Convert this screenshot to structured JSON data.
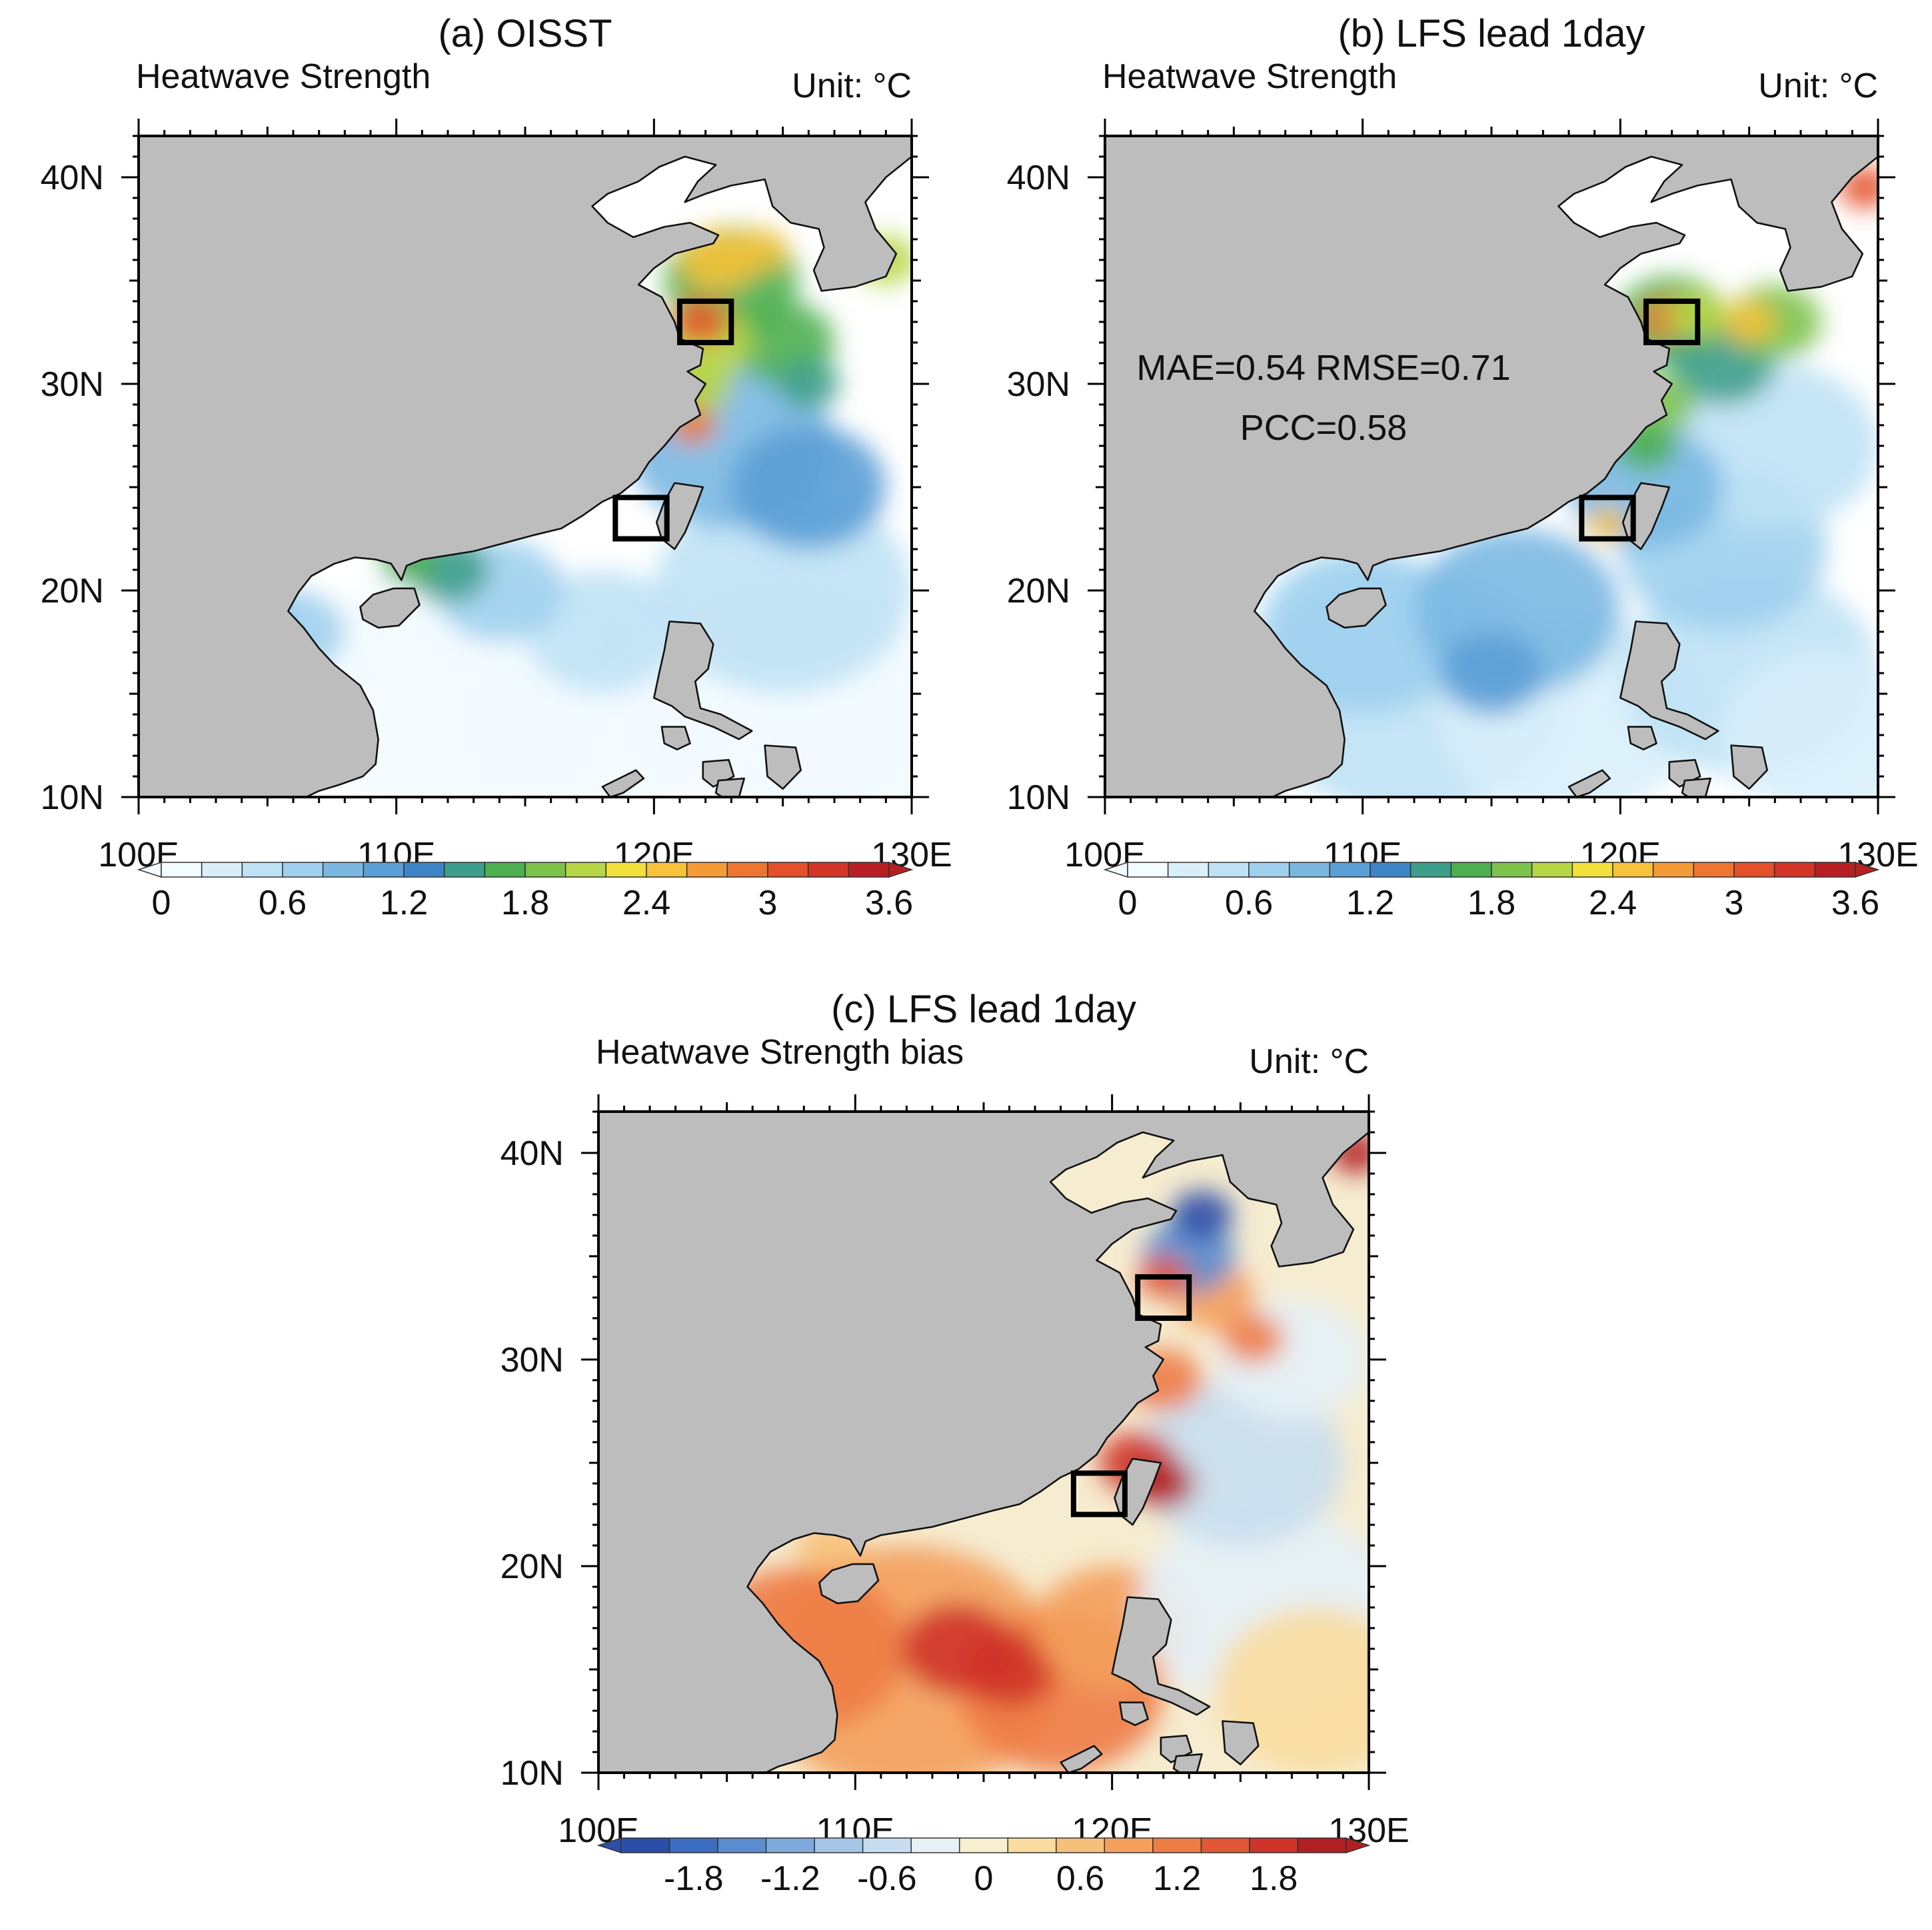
{
  "figure": {
    "panels": [
      {
        "id": "a",
        "title": "(a) OISST",
        "subtitle": "Heatwave Strength",
        "unit_label": "Unit: °C",
        "kind": "strength",
        "stats": null,
        "boxes": [
          {
            "lon": [
              121,
              123
            ],
            "lat": [
              32,
              34
            ]
          },
          {
            "lon": [
              118.5,
              120.5
            ],
            "lat": [
              22.5,
              24.5
            ]
          }
        ]
      },
      {
        "id": "b",
        "title": "(b) LFS lead 1day",
        "subtitle": "Heatwave Strength",
        "unit_label": "Unit: °C",
        "kind": "strength",
        "stats": {
          "line1": "MAE=0.54  RMSE=0.71",
          "line2": "PCC=0.58"
        },
        "boxes": [
          {
            "lon": [
              121,
              123
            ],
            "lat": [
              32,
              34
            ]
          },
          {
            "lon": [
              118.5,
              120.5
            ],
            "lat": [
              22.5,
              24.5
            ]
          }
        ]
      },
      {
        "id": "c",
        "title": "(c) LFS lead 1day",
        "subtitle": "Heatwave Strength bias",
        "unit_label": "Unit: °C",
        "kind": "bias",
        "stats": null,
        "boxes": [
          {
            "lon": [
              121,
              123
            ],
            "lat": [
              32,
              34
            ]
          },
          {
            "lon": [
              118.5,
              120.5
            ],
            "lat": [
              22.5,
              24.5
            ]
          }
        ]
      }
    ],
    "axes": {
      "lon_range": [
        100,
        130
      ],
      "lat_range": [
        10,
        42
      ],
      "lon_ticks": [
        "100E",
        "110E",
        "120E",
        "130E"
      ],
      "lat_ticks": [
        "10N",
        "20N",
        "30N",
        "40N"
      ]
    },
    "colorbars": {
      "strength": {
        "labels": [
          "0",
          "0.6",
          "1.2",
          "1.8",
          "2.4",
          "3",
          "3.6"
        ],
        "colors": [
          "#f2fbff",
          "#d9f0fb",
          "#bfe2f5",
          "#9fd0ee",
          "#7ab8e2",
          "#5a9fd6",
          "#3d84c6",
          "#3d9e8a",
          "#4caf50",
          "#7cc24a",
          "#b7d645",
          "#f2e03b",
          "#f7c13a",
          "#f49a36",
          "#ee7530",
          "#e4502a",
          "#d33426",
          "#b81f22"
        ]
      },
      "bias": {
        "labels": [
          "-1.8",
          "-1.2",
          "-0.6",
          "0",
          "0.6",
          "1.2",
          "1.8"
        ],
        "colors": [
          "#2b4ea8",
          "#3b6cc0",
          "#5a8ccf",
          "#7eaadb",
          "#a5c6e6",
          "#c8def0",
          "#e6f1f7",
          "#f7efcf",
          "#f9dc9e",
          "#f7c07a",
          "#f4a05c",
          "#ee7c45",
          "#e25736",
          "#cf3329",
          "#b11f22"
        ]
      }
    },
    "chart_data": {
      "type": "heatmap",
      "variable": "Heatwave Strength",
      "unit": "°C",
      "domain": {
        "lon": [
          100,
          130
        ],
        "lat": [
          10,
          42
        ]
      },
      "contour_levels_strength": [
        0,
        0.6,
        1.2,
        1.8,
        2.4,
        3,
        3.6
      ],
      "contour_levels_bias": [
        -1.8,
        -1.2,
        -0.6,
        0,
        0.6,
        1.2,
        1.8
      ],
      "metrics_panel_b": {
        "MAE": 0.54,
        "RMSE": 0.71,
        "PCC": 0.58
      },
      "boxes": [
        {
          "lon": [
            121,
            123
          ],
          "lat": [
            32,
            34
          ]
        },
        {
          "lon": [
            118.5,
            120.5
          ],
          "lat": [
            22.5,
            24.5
          ]
        }
      ]
    }
  }
}
